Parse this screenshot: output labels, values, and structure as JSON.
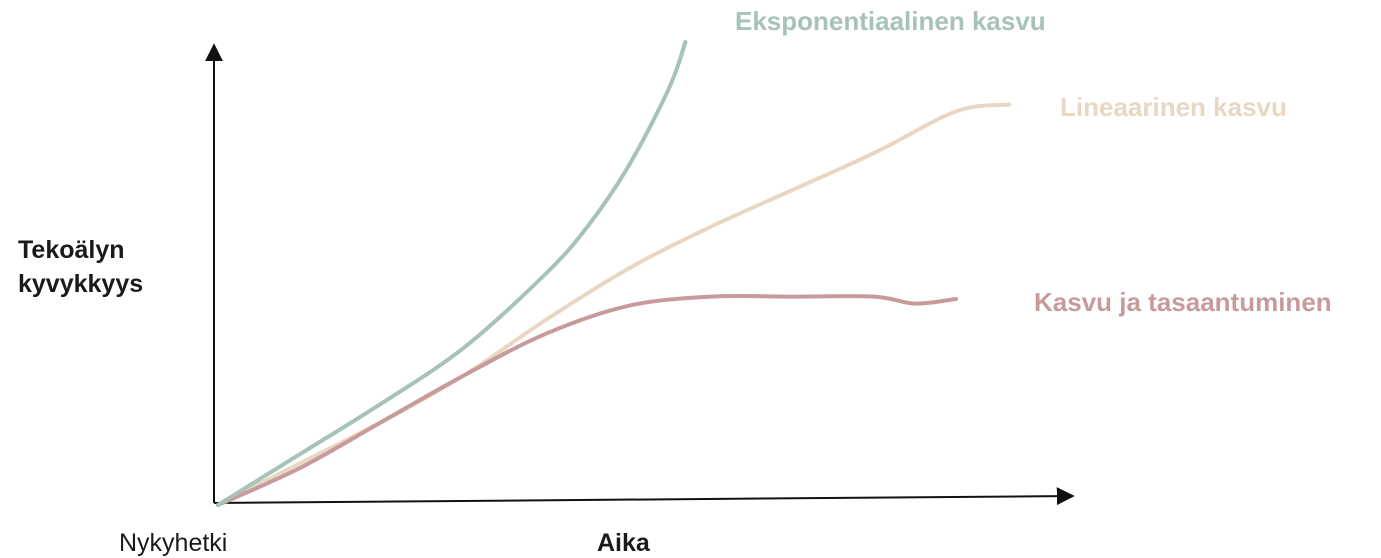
{
  "chart_data": {
    "type": "line",
    "xlabel": "Aika",
    "ylabel_lines": [
      "Tekoälyn",
      "kyvykkyys"
    ],
    "x_origin_label": "Nykyhetki",
    "grid": false,
    "legend": "inline-labels",
    "xlim": [
      0,
      100
    ],
    "ylim": [
      0,
      100
    ],
    "series": [
      {
        "name": "Eksponentiaalinen kasvu",
        "color": "#a7c2b6",
        "x": [
          0,
          10,
          20,
          30,
          40,
          45,
          50,
          55,
          57
        ],
        "y": [
          0,
          11,
          22,
          34,
          50,
          60,
          73,
          90,
          100
        ]
      },
      {
        "name": "Lineaarinen kasvu",
        "color": "#e7d7c3",
        "x": [
          0,
          10,
          20,
          30,
          40,
          50,
          60,
          70,
          80,
          90,
          96.5
        ],
        "y": [
          0,
          9,
          18,
          28,
          40,
          51,
          60,
          68,
          76,
          85,
          86.5
        ]
      },
      {
        "name": "Kasvu ja tasaantuminen",
        "color": "#c79a9c",
        "x": [
          0,
          10,
          20,
          30,
          40,
          50,
          60,
          70,
          80,
          85,
          90
        ],
        "y": [
          0,
          8,
          18,
          28,
          37,
          43,
          45,
          45,
          45,
          43.5,
          44.5
        ]
      }
    ]
  }
}
